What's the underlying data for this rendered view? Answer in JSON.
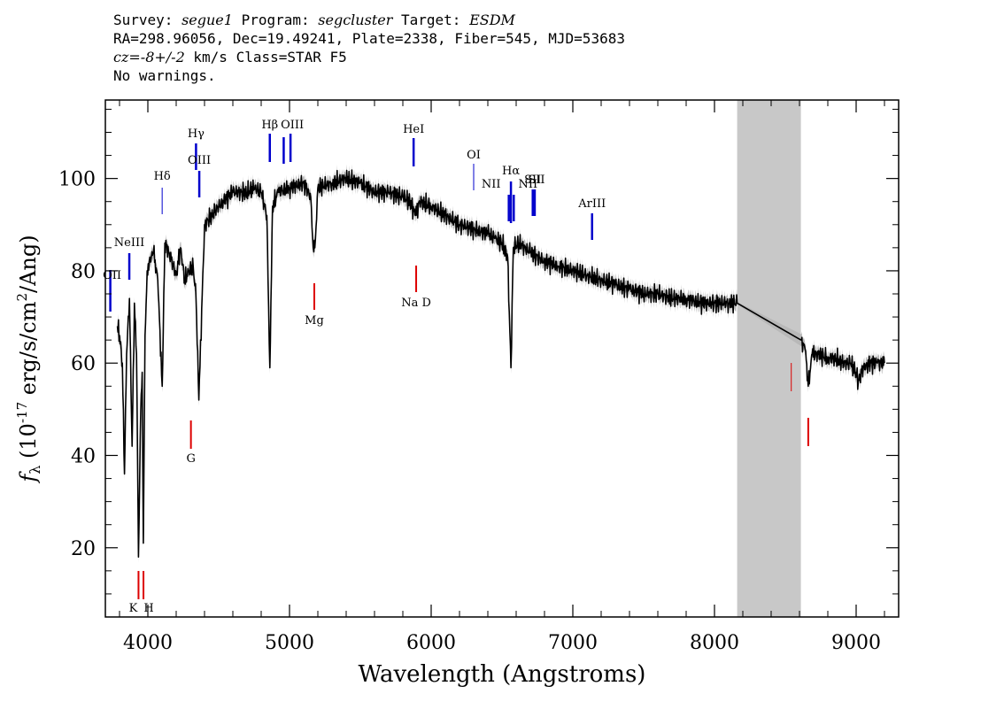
{
  "header": {
    "survey_label": "Survey:",
    "survey_value": "segue1",
    "program_label": "Program:",
    "program_value": "segcluster",
    "target_label": "Target:",
    "target_value": "ESDM",
    "line2": "RA=298.96056, Dec=19.49241, Plate=2338, Fiber=545, MJD=53683",
    "cz_value": "cz=-8+/-2",
    "cz_rest": " km/s Class=STAR F5",
    "line4": "No warnings."
  },
  "chart_data": {
    "type": "line",
    "xlabel": "Wavelength (Angstroms)",
    "ylabel_main": "f",
    "ylabel_sub": "λ",
    "ylabel_rest": " (10",
    "ylabel_exp": "-17",
    "ylabel_rest2": " erg/s/cm",
    "ylabel_exp2": "2",
    "ylabel_rest3": "/Ang)",
    "xlim": [
      3700,
      9300
    ],
    "ylim": [
      5,
      117
    ],
    "xticks": [
      4000,
      5000,
      6000,
      7000,
      8000,
      9000
    ],
    "xtick_labels": [
      "4000",
      "5000",
      "6000",
      "7000",
      "8000",
      "9000"
    ],
    "yticks": [
      20,
      40,
      60,
      80,
      100
    ],
    "ytick_labels": [
      "20",
      "40",
      "60",
      "80",
      "100"
    ],
    "masked_region": [
      8160,
      8610
    ],
    "grid": false,
    "series": [
      {
        "x": [
          3785,
          3800,
          3820,
          3835,
          3850,
          3870,
          3889,
          3905,
          3920,
          3934,
          3950,
          3960,
          3968,
          3980,
          3995,
          4010,
          4040,
          4070,
          4101,
          4120,
          4150,
          4180,
          4200,
          4230,
          4260,
          4290,
          4320,
          4340,
          4360,
          4400,
          4450,
          4500,
          4600,
          4700,
          4750,
          4800,
          4840,
          4861,
          4880,
          4920,
          5000,
          5100,
          5150,
          5167,
          5183,
          5200,
          5300,
          5400,
          5500,
          5600,
          5700,
          5800,
          5850,
          5890,
          5920,
          6000,
          6100,
          6200,
          6300,
          6400,
          6450,
          6500,
          6540,
          6563,
          6580,
          6620,
          6700,
          6800,
          6900,
          7000,
          7100,
          7200,
          7300,
          7400,
          7500,
          7600,
          7700,
          7800,
          7900,
          8000,
          8100,
          8160,
          8610,
          8640,
          8662,
          8690,
          8720,
          8800,
          8860,
          8900,
          8960,
          9000,
          9015,
          9050,
          9100,
          9150,
          9200
        ],
        "y": [
          68,
          66,
          60,
          36,
          62,
          74,
          42,
          73,
          62,
          18,
          50,
          58,
          21,
          66,
          80,
          82,
          84,
          78,
          55,
          86,
          84,
          81,
          79,
          85,
          78,
          80,
          81,
          74,
          52,
          90,
          92,
          94,
          97,
          97,
          98,
          97,
          92,
          59,
          94,
          97,
          98,
          99,
          96,
          85,
          87,
          98,
          99,
          100,
          99,
          97,
          97,
          96,
          95,
          92,
          95,
          94,
          92,
          90,
          89,
          88,
          87,
          86,
          83,
          59,
          85,
          86,
          84,
          82,
          81,
          80,
          79,
          78,
          77,
          76,
          75,
          75,
          74,
          74,
          73,
          73,
          73,
          73,
          65,
          63,
          55,
          62,
          62,
          61,
          61,
          60,
          60,
          58,
          56,
          59,
          60,
          60,
          60
        ]
      }
    ],
    "emission_lines": [
      {
        "label": "OII",
        "x": 3727
      },
      {
        "label": "NeIII",
        "x": 3869
      },
      {
        "label": "Hδ",
        "x": 4101
      },
      {
        "label": "Hγ",
        "x": 4340
      },
      {
        "label": "OIII",
        "x": 4363
      },
      {
        "label": "Hβ",
        "x": 4861
      },
      {
        "label": "OIII",
        "x": 4959
      },
      {
        "label": "OIII",
        "x": 5007
      },
      {
        "label": "HeI",
        "x": 5876
      },
      {
        "label": "OI",
        "x": 6300
      },
      {
        "label": "NII",
        "x": 6548
      },
      {
        "label": "Hα",
        "x": 6563
      },
      {
        "label": "NII",
        "x": 6583
      },
      {
        "label": "SII",
        "x": 6717
      },
      {
        "label": "SII",
        "x": 6731
      },
      {
        "label": "ArIII",
        "x": 7136
      }
    ],
    "absorption_lines": [
      {
        "label": "K",
        "x": 3934
      },
      {
        "label": "H",
        "x": 3969
      },
      {
        "label": "G",
        "x": 4304
      },
      {
        "label": "Mg",
        "x": 5175
      },
      {
        "label": "Na D",
        "x": 5894
      },
      {
        "label": "",
        "x": 8542
      },
      {
        "label": "",
        "x": 8662
      }
    ],
    "colors": {
      "spectrum": "#000000",
      "error_band": "#b8b8b8",
      "mask": "#c8c8c8",
      "emission": "#0000cc",
      "absorption": "#dd0000"
    }
  }
}
